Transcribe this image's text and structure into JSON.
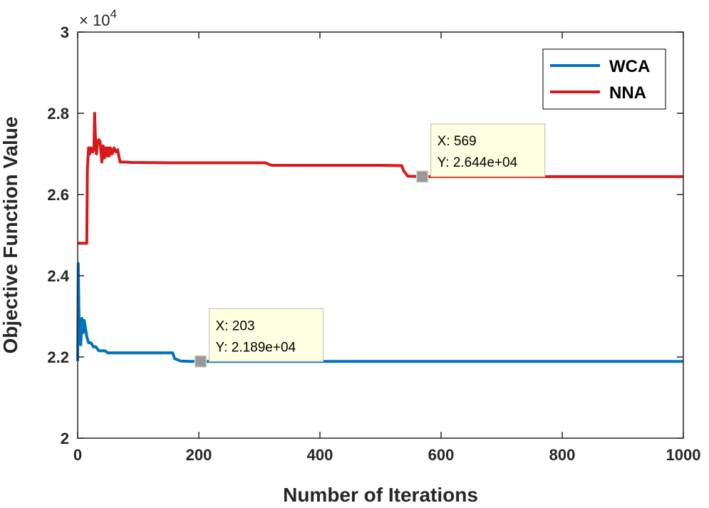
{
  "chart_data": {
    "type": "line",
    "xlabel": "Number of Iterations",
    "ylabel": "Objective Function Value",
    "xlim": [
      0,
      1000
    ],
    "ylim": [
      20000,
      30000
    ],
    "x_ticks": [
      0,
      200,
      400,
      600,
      800,
      1000
    ],
    "y_ticks": [
      20000,
      22000,
      24000,
      26000,
      28000,
      30000
    ],
    "x_tick_labels": [
      "0",
      "200",
      "400",
      "600",
      "800",
      "1000"
    ],
    "y_tick_labels": [
      "2",
      "2.2",
      "2.4",
      "2.6",
      "2.8",
      "3"
    ],
    "y_multiplier": {
      "base": "× 10",
      "exponent": "4"
    },
    "grid": false,
    "legend_position": "top-right",
    "series": [
      {
        "name": "WCA",
        "color": "#0072bd",
        "points": [
          [
            0,
            21900
          ],
          [
            1,
            24300
          ],
          [
            2,
            23200
          ],
          [
            3,
            22500
          ],
          [
            5,
            22300
          ],
          [
            7,
            22950
          ],
          [
            9,
            22600
          ],
          [
            11,
            22900
          ],
          [
            13,
            22700
          ],
          [
            15,
            22500
          ],
          [
            18,
            22350
          ],
          [
            22,
            22350
          ],
          [
            26,
            22250
          ],
          [
            30,
            22250
          ],
          [
            35,
            22150
          ],
          [
            40,
            22150
          ],
          [
            45,
            22150
          ],
          [
            50,
            22100
          ],
          [
            80,
            22100
          ],
          [
            120,
            22100
          ],
          [
            157,
            22100
          ],
          [
            160,
            21960
          ],
          [
            170,
            21900
          ],
          [
            185,
            21890
          ],
          [
            203,
            21890
          ],
          [
            400,
            21890
          ],
          [
            600,
            21890
          ],
          [
            800,
            21890
          ],
          [
            1000,
            21890
          ]
        ]
      },
      {
        "name": "NNA",
        "color": "#d7191c",
        "points": [
          [
            0,
            24800
          ],
          [
            15,
            24800
          ],
          [
            16,
            26600
          ],
          [
            18,
            27150
          ],
          [
            20,
            27000
          ],
          [
            22,
            27150
          ],
          [
            25,
            27050
          ],
          [
            27,
            27150
          ],
          [
            28,
            28000
          ],
          [
            29,
            27500
          ],
          [
            31,
            27000
          ],
          [
            33,
            27300
          ],
          [
            35,
            27350
          ],
          [
            37,
            27300
          ],
          [
            40,
            26800
          ],
          [
            42,
            27200
          ],
          [
            44,
            26900
          ],
          [
            46,
            27150
          ],
          [
            48,
            26950
          ],
          [
            50,
            27150
          ],
          [
            52,
            26950
          ],
          [
            54,
            27150
          ],
          [
            57,
            27000
          ],
          [
            60,
            27150
          ],
          [
            63,
            27050
          ],
          [
            66,
            27100
          ],
          [
            70,
            26800
          ],
          [
            75,
            26800
          ],
          [
            90,
            26790
          ],
          [
            150,
            26780
          ],
          [
            250,
            26780
          ],
          [
            310,
            26780
          ],
          [
            320,
            26720
          ],
          [
            500,
            26720
          ],
          [
            535,
            26710
          ],
          [
            538,
            26590
          ],
          [
            545,
            26450
          ],
          [
            569,
            26440
          ],
          [
            800,
            26440
          ],
          [
            1000,
            26440
          ]
        ]
      }
    ],
    "annotations": [
      {
        "series": "NNA",
        "x": 569,
        "y": 26440,
        "label_x": "X: 569",
        "label_y": "Y: 2.644e+04"
      },
      {
        "series": "WCA",
        "x": 203,
        "y": 21890,
        "label_x": "X: 203",
        "label_y": "Y: 2.189e+04"
      }
    ]
  }
}
